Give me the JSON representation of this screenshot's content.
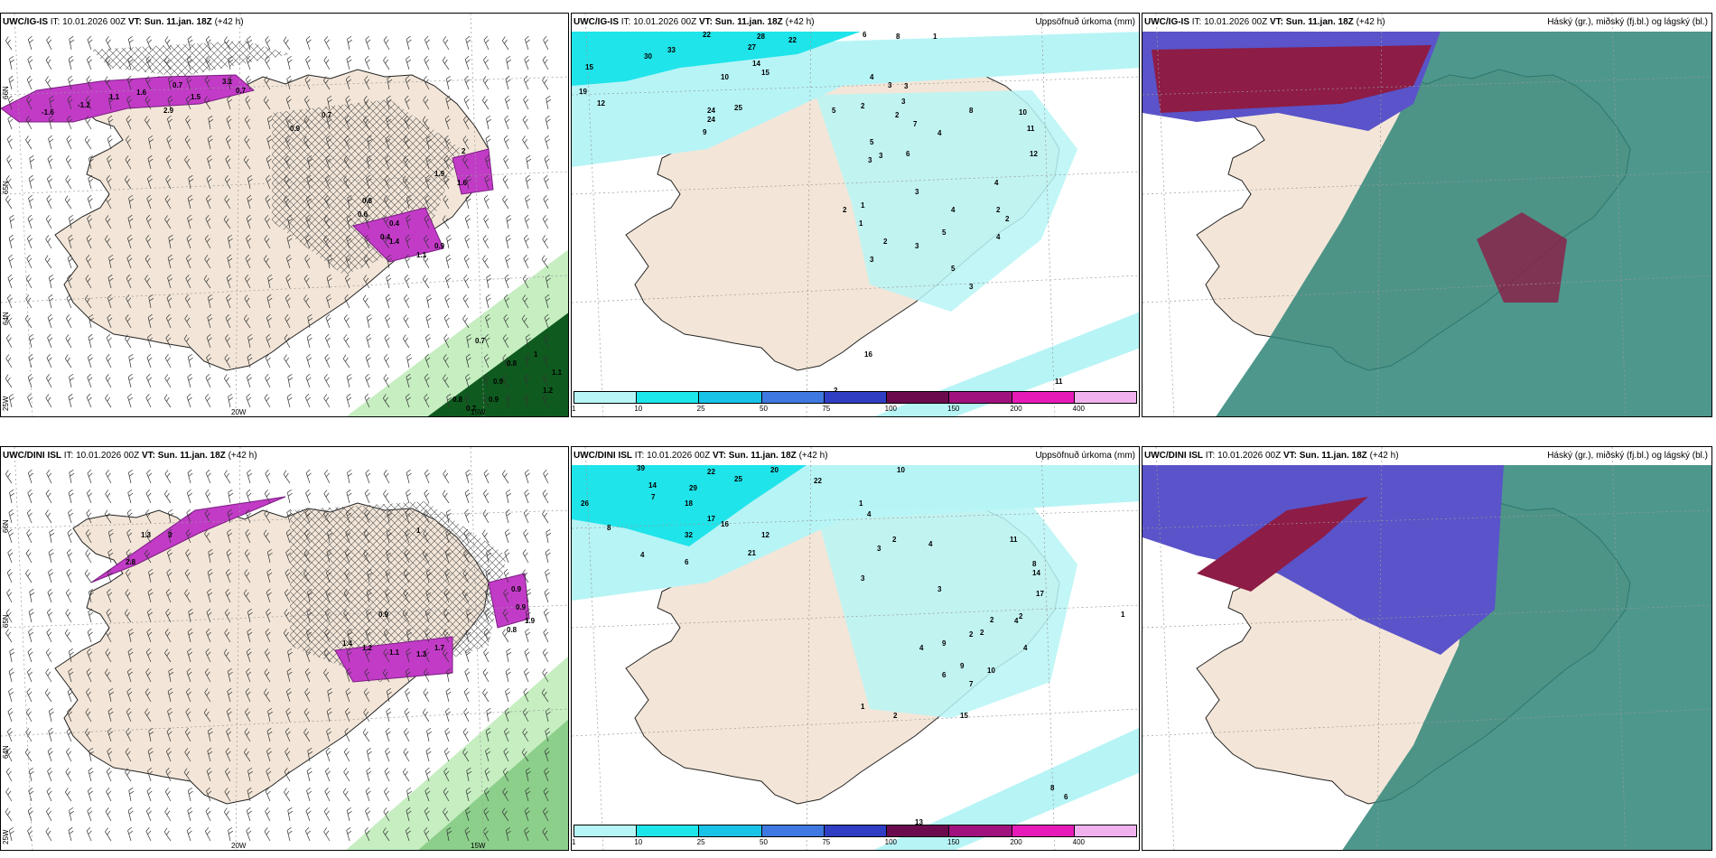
{
  "panels": [
    {
      "id": "r1c1",
      "title_bold": "UWC/IG-IS",
      "it": "IT: 10.01.2026 00Z",
      "vt": "VT: Sun. 11.jan. 18Z",
      "lead": "(+42 h)",
      "right_title": "",
      "axis_labels": {
        "lat1": "66N",
        "lat2": "65N",
        "lat3": "64N",
        "lon1": "25W",
        "lon2": "20W",
        "lon3": "15W"
      },
      "labels": [
        "-1.6",
        "-1.2",
        "1.6",
        "0.7",
        "3.1",
        "2.9",
        "1.1",
        "1.5",
        "0.7",
        "0.9",
        "0.7",
        "2",
        "1.9",
        "1.6",
        "0.8",
        "0.6",
        "0.4",
        "0.4",
        "0.9",
        "1.1",
        "1.4",
        "0.7",
        "0.8",
        "0.9",
        "1.2",
        "0.7",
        "0.8",
        "0.9",
        "1",
        "1.1"
      ]
    },
    {
      "id": "r1c2",
      "title_bold": "UWC/IG-IS",
      "it": "IT: 10.01.2026 00Z",
      "vt": "VT: Sun. 11.jan. 18Z",
      "lead": "(+42 h)",
      "right_title": "Uppsöfnuð úrkoma (mm)",
      "labels": [
        "22",
        "28",
        "27",
        "22",
        "6",
        "8",
        "1",
        "30",
        "33",
        "15",
        "19",
        "12",
        "14",
        "10",
        "15",
        "4",
        "3",
        "3",
        "3",
        "2",
        "5",
        "24",
        "25",
        "24",
        "9",
        "2",
        "5",
        "7",
        "3",
        "4",
        "8",
        "10",
        "11",
        "6",
        "3",
        "3",
        "4",
        "2",
        "4",
        "12",
        "1",
        "1",
        "2",
        "5",
        "3",
        "2",
        "3",
        "4",
        "2",
        "5",
        "3",
        "11",
        "16",
        "2"
      ]
    },
    {
      "id": "r1c3",
      "title_bold": "UWC/IG-IS",
      "it": "IT: 10.01.2026 00Z",
      "vt": "VT: Sun. 11.jan. 18Z",
      "lead": "(+42 h)",
      "right_title": "Háský (gr.), miðský (fj.bl.) og lágský (bl.)"
    },
    {
      "id": "r2c1",
      "title_bold": "UWC/DINI ISL",
      "it": "IT: 10.01.2026 00Z",
      "vt": "VT: Sun. 11.jan. 18Z",
      "lead": "(+42 h)",
      "right_title": "",
      "axis_labels": {
        "lat1": "66N",
        "lat2": "65N",
        "lat3": "64N",
        "lon1": "25W",
        "lon2": "20W",
        "lon3": "15W"
      },
      "labels": [
        "1.3",
        "2.8",
        "3",
        "1",
        "0.9",
        "1.4",
        "1.2",
        "1.1",
        "1.3",
        "1.7",
        "0.9",
        "0.9",
        "1.9",
        "0.8"
      ]
    },
    {
      "id": "r2c2",
      "title_bold": "UWC/DINI ISL",
      "it": "IT: 10.01.2026 00Z",
      "vt": "VT: Sun. 11.jan. 18Z",
      "lead": "(+42 h)",
      "right_title": "Uppsöfnuð úrkoma (mm)",
      "labels": [
        "39",
        "22",
        "25",
        "20",
        "22",
        "10",
        "26",
        "14",
        "29",
        "18",
        "8",
        "7",
        "32",
        "17",
        "16",
        "12",
        "21",
        "4",
        "6",
        "1",
        "4",
        "2",
        "3",
        "3",
        "4",
        "11",
        "8",
        "14",
        "17",
        "2",
        "3",
        "9",
        "2",
        "2",
        "4",
        "6",
        "9",
        "10",
        "7",
        "4",
        "4",
        "2",
        "2",
        "1",
        "15",
        "8",
        "6",
        "13",
        "1"
      ]
    },
    {
      "id": "r2c3",
      "title_bold": "UWC/DINI ISL",
      "it": "IT: 10.01.2026 00Z",
      "vt": "VT: Sun. 11.jan. 18Z",
      "lead": "(+42 h)",
      "right_title": "Háský (gr.), miðský (fj.bl.) og lágský (bl.)"
    }
  ],
  "colorbar": {
    "colors": [
      "#b7f6f6",
      "#1ce6ea",
      "#19c3e8",
      "#3f78e0",
      "#2f3ec2",
      "#6b0b4e",
      "#a0127e",
      "#e61bb7",
      "#f1b1ee"
    ],
    "ticks": [
      "1",
      "10",
      "25",
      "50",
      "75",
      "100",
      "150",
      "200",
      "400"
    ]
  },
  "colors": {
    "land": "#f3e6d8",
    "sea": "#ffffff",
    "precip_light": "#b7f4f6",
    "precip_mid": "#1fe4ea",
    "hatch": "#555555",
    "magenta": "#c23bc7",
    "green_light": "#c6eec1",
    "green_dark": "#0f5b1f",
    "cloud_blue": "#5a53c9",
    "cloud_red": "#8d1c46",
    "cloud_teal": "#2f8579"
  }
}
